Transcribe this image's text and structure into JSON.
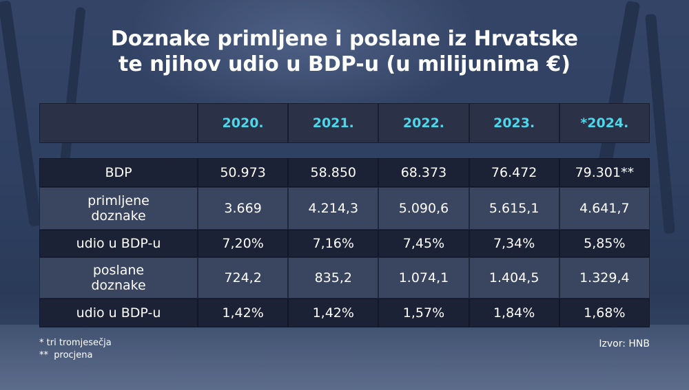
{
  "title_lines": [
    "Doznake primljene i poslane iz Hrvatske",
    "te njihov udio u BDP-u (u milijunima €)"
  ],
  "chart_data": {
    "type": "table",
    "columns": [
      "2020.",
      "2021.",
      "2022.",
      "2023.",
      "*2024."
    ],
    "rows": [
      {
        "label": "BDP",
        "values": [
          "50.973",
          "58.850",
          "68.373",
          "76.472",
          "79.301**"
        ]
      },
      {
        "label": "primljene\ndoznake",
        "values": [
          "3.669",
          "4.214,3",
          "5.090,6",
          "5.615,1",
          "4.641,7"
        ]
      },
      {
        "label": "udio u BDP-u",
        "values": [
          "7,20%",
          "7,16%",
          "7,45%",
          "7,34%",
          "5,85%"
        ]
      },
      {
        "label": "poslane\ndoznake",
        "values": [
          "724,2",
          "835,2",
          "1.074,1",
          "1.404,5",
          "1.329,4"
        ]
      },
      {
        "label": "udio u BDP-u",
        "values": [
          "1,42%",
          "1,42%",
          "1,57%",
          "1,84%",
          "1,68%"
        ]
      }
    ]
  },
  "footnotes": [
    "* tri tromjesečja",
    "**  procjena"
  ],
  "source": "Izvor: HNB",
  "colors": {
    "header_text": "#4ed7ea",
    "row_dark": "#1b2236",
    "row_light": "#3a4560",
    "text": "#ffffff"
  }
}
